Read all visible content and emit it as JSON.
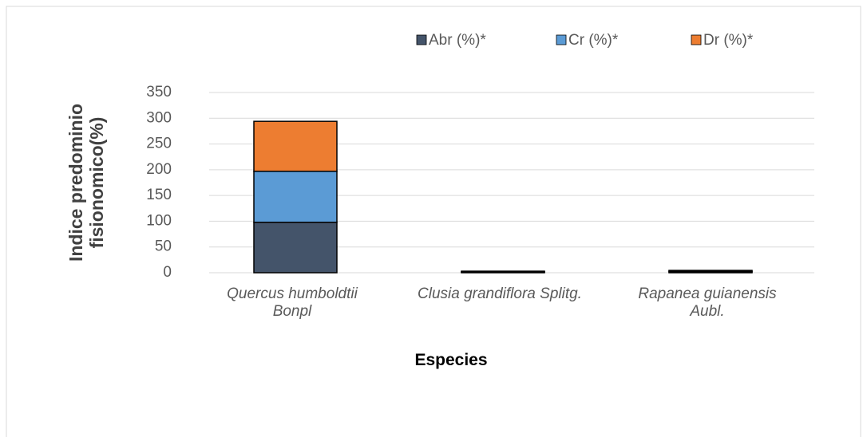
{
  "chart_data": {
    "type": "bar",
    "stacked": true,
    "x_label": "Especies",
    "y_label": "Indice predominio fisionomico(%)",
    "categories": [
      "Quercus humboldtii Bonpl",
      "Clusia grandiflora Splitg.",
      "Rapanea guianensis Aubl."
    ],
    "series": [
      {
        "name": "Abr (%)*",
        "color": "#44546a",
        "values": [
          98,
          1,
          1.5
        ]
      },
      {
        "name": "Cr (%)*",
        "color": "#5b9bd5",
        "values": [
          99,
          1,
          1.5
        ]
      },
      {
        "name": "Dr (%)*",
        "color": "#ed7d31",
        "values": [
          97,
          1,
          1.5
        ]
      }
    ],
    "ylim": [
      0,
      350
    ],
    "yticks": [
      0,
      50,
      100,
      150,
      200,
      250,
      300,
      350
    ],
    "grid": true,
    "legend": "top"
  }
}
